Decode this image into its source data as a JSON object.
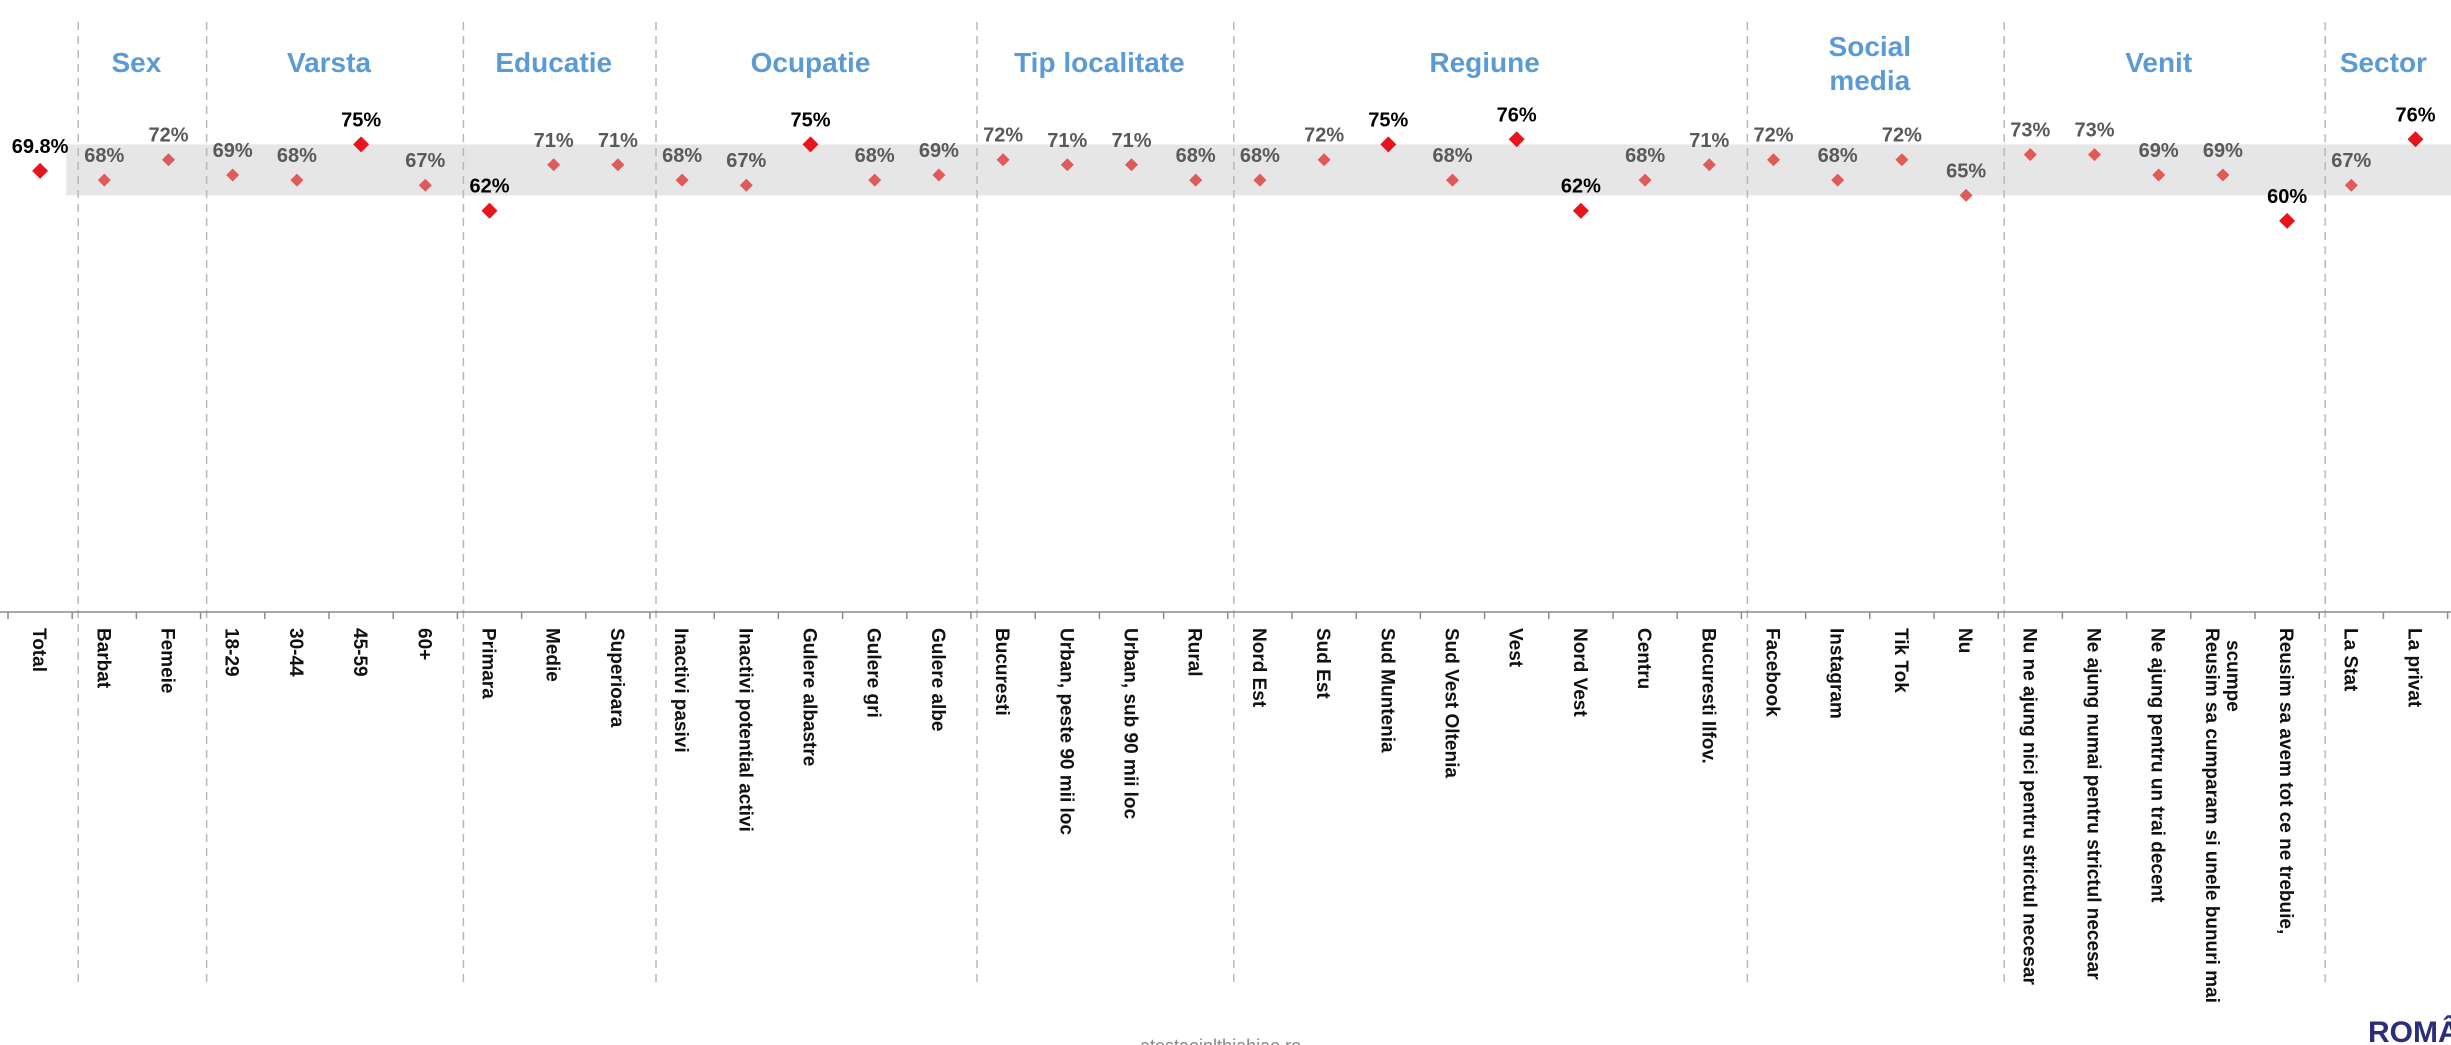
{
  "chart_data": {
    "type": "scatter",
    "ylim": [
      0,
      100
    ],
    "band": [
      65,
      75
    ],
    "colors": {
      "highlight": "#e8141c",
      "normal": "#e05a5a",
      "band": "#e6e6e6",
      "group_label": "#5b9bd5",
      "highlight_text": "#000000",
      "normal_text": "#595959"
    },
    "groups": [
      {
        "name": "",
        "points": [
          {
            "category": "Total",
            "value": 69.8,
            "label": "69.8%",
            "highlight": true
          }
        ]
      },
      {
        "name": "Sex",
        "points": [
          {
            "category": "Barbat",
            "value": 68,
            "label": "68%",
            "highlight": false
          },
          {
            "category": "Femeie",
            "value": 72,
            "label": "72%",
            "highlight": false
          }
        ]
      },
      {
        "name": "Varsta",
        "points": [
          {
            "category": "18-29",
            "value": 69,
            "label": "69%",
            "highlight": false
          },
          {
            "category": "30-44",
            "value": 68,
            "label": "68%",
            "highlight": false
          },
          {
            "category": "45-59",
            "value": 75,
            "label": "75%",
            "highlight": true
          },
          {
            "category": "60+",
            "value": 67,
            "label": "67%",
            "highlight": false
          }
        ]
      },
      {
        "name": "Educatie",
        "points": [
          {
            "category": "Primara",
            "value": 62,
            "label": "62%",
            "highlight": true
          },
          {
            "category": "Medie",
            "value": 71,
            "label": "71%",
            "highlight": false
          },
          {
            "category": "Superioara",
            "value": 71,
            "label": "71%",
            "highlight": false
          }
        ]
      },
      {
        "name": "Ocupatie",
        "points": [
          {
            "category": "Inactivi pasivi",
            "value": 68,
            "label": "68%",
            "highlight": false
          },
          {
            "category": "Inactivi potential activi",
            "value": 67,
            "label": "67%",
            "highlight": false
          },
          {
            "category": "Gulere albastre",
            "value": 75,
            "label": "75%",
            "highlight": true
          },
          {
            "category": "Gulere gri",
            "value": 68,
            "label": "68%",
            "highlight": false
          },
          {
            "category": "Gulere albe",
            "value": 69,
            "label": "69%",
            "highlight": false
          }
        ]
      },
      {
        "name": "Tip localitate",
        "points": [
          {
            "category": "Bucuresti",
            "value": 72,
            "label": "72%",
            "highlight": false
          },
          {
            "category": "Urban, peste 90 mii loc",
            "value": 71,
            "label": "71%",
            "highlight": false
          },
          {
            "category": "Urban, sub 90 mii loc",
            "value": 71,
            "label": "71%",
            "highlight": false
          },
          {
            "category": "Rural",
            "value": 68,
            "label": "68%",
            "highlight": false
          }
        ]
      },
      {
        "name": "Regiune",
        "points": [
          {
            "category": "Nord Est",
            "value": 68,
            "label": "68%",
            "highlight": false
          },
          {
            "category": "Sud Est",
            "value": 72,
            "label": "72%",
            "highlight": false
          },
          {
            "category": "Sud Muntenia",
            "value": 75,
            "label": "75%",
            "highlight": true
          },
          {
            "category": "Sud Vest Oltenia",
            "value": 68,
            "label": "68%",
            "highlight": false
          },
          {
            "category": "Vest",
            "value": 76,
            "label": "76%",
            "highlight": true
          },
          {
            "category": "Nord Vest",
            "value": 62,
            "label": "62%",
            "highlight": true
          },
          {
            "category": "Centru",
            "value": 68,
            "label": "68%",
            "highlight": false
          },
          {
            "category": "Bucuresti Ilfov.",
            "value": 71,
            "label": "71%",
            "highlight": false
          }
        ]
      },
      {
        "name": "Social media",
        "points": [
          {
            "category": "Facebook",
            "value": 72,
            "label": "72%",
            "highlight": false
          },
          {
            "category": "Instagram",
            "value": 68,
            "label": "68%",
            "highlight": false
          },
          {
            "category": "Tik Tok",
            "value": 72,
            "label": "72%",
            "highlight": false
          },
          {
            "category": "Nu",
            "value": 65,
            "label": "65%",
            "highlight": false
          }
        ]
      },
      {
        "name": "Venit",
        "points": [
          {
            "category": "Nu ne ajung nici pentru strictul necesar",
            "value": 73,
            "label": "73%",
            "highlight": false
          },
          {
            "category": "Ne ajung numai pentru strictul necesar",
            "value": 73,
            "label": "73%",
            "highlight": false
          },
          {
            "category": "Ne ajung pentru un trai decent",
            "value": 69,
            "label": "69%",
            "highlight": false
          },
          {
            "category": "Reusim sa cumparam si unele bunuri mai scumpe",
            "value": 69,
            "label": "69%",
            "highlight": false
          },
          {
            "category": "Reusim sa avem tot ce ne trebuie,",
            "value": 60,
            "label": "60%",
            "highlight": true
          }
        ]
      },
      {
        "name": "Sector",
        "points": [
          {
            "category": "La Stat",
            "value": 67,
            "label": "67%",
            "highlight": false
          },
          {
            "category": "La privat",
            "value": 76,
            "label": "76%",
            "highlight": true
          }
        ]
      }
    ]
  },
  "footer": {
    "text": "atestaoinlthiahiao.ro"
  },
  "logo": {
    "text": "ROMÂ"
  }
}
